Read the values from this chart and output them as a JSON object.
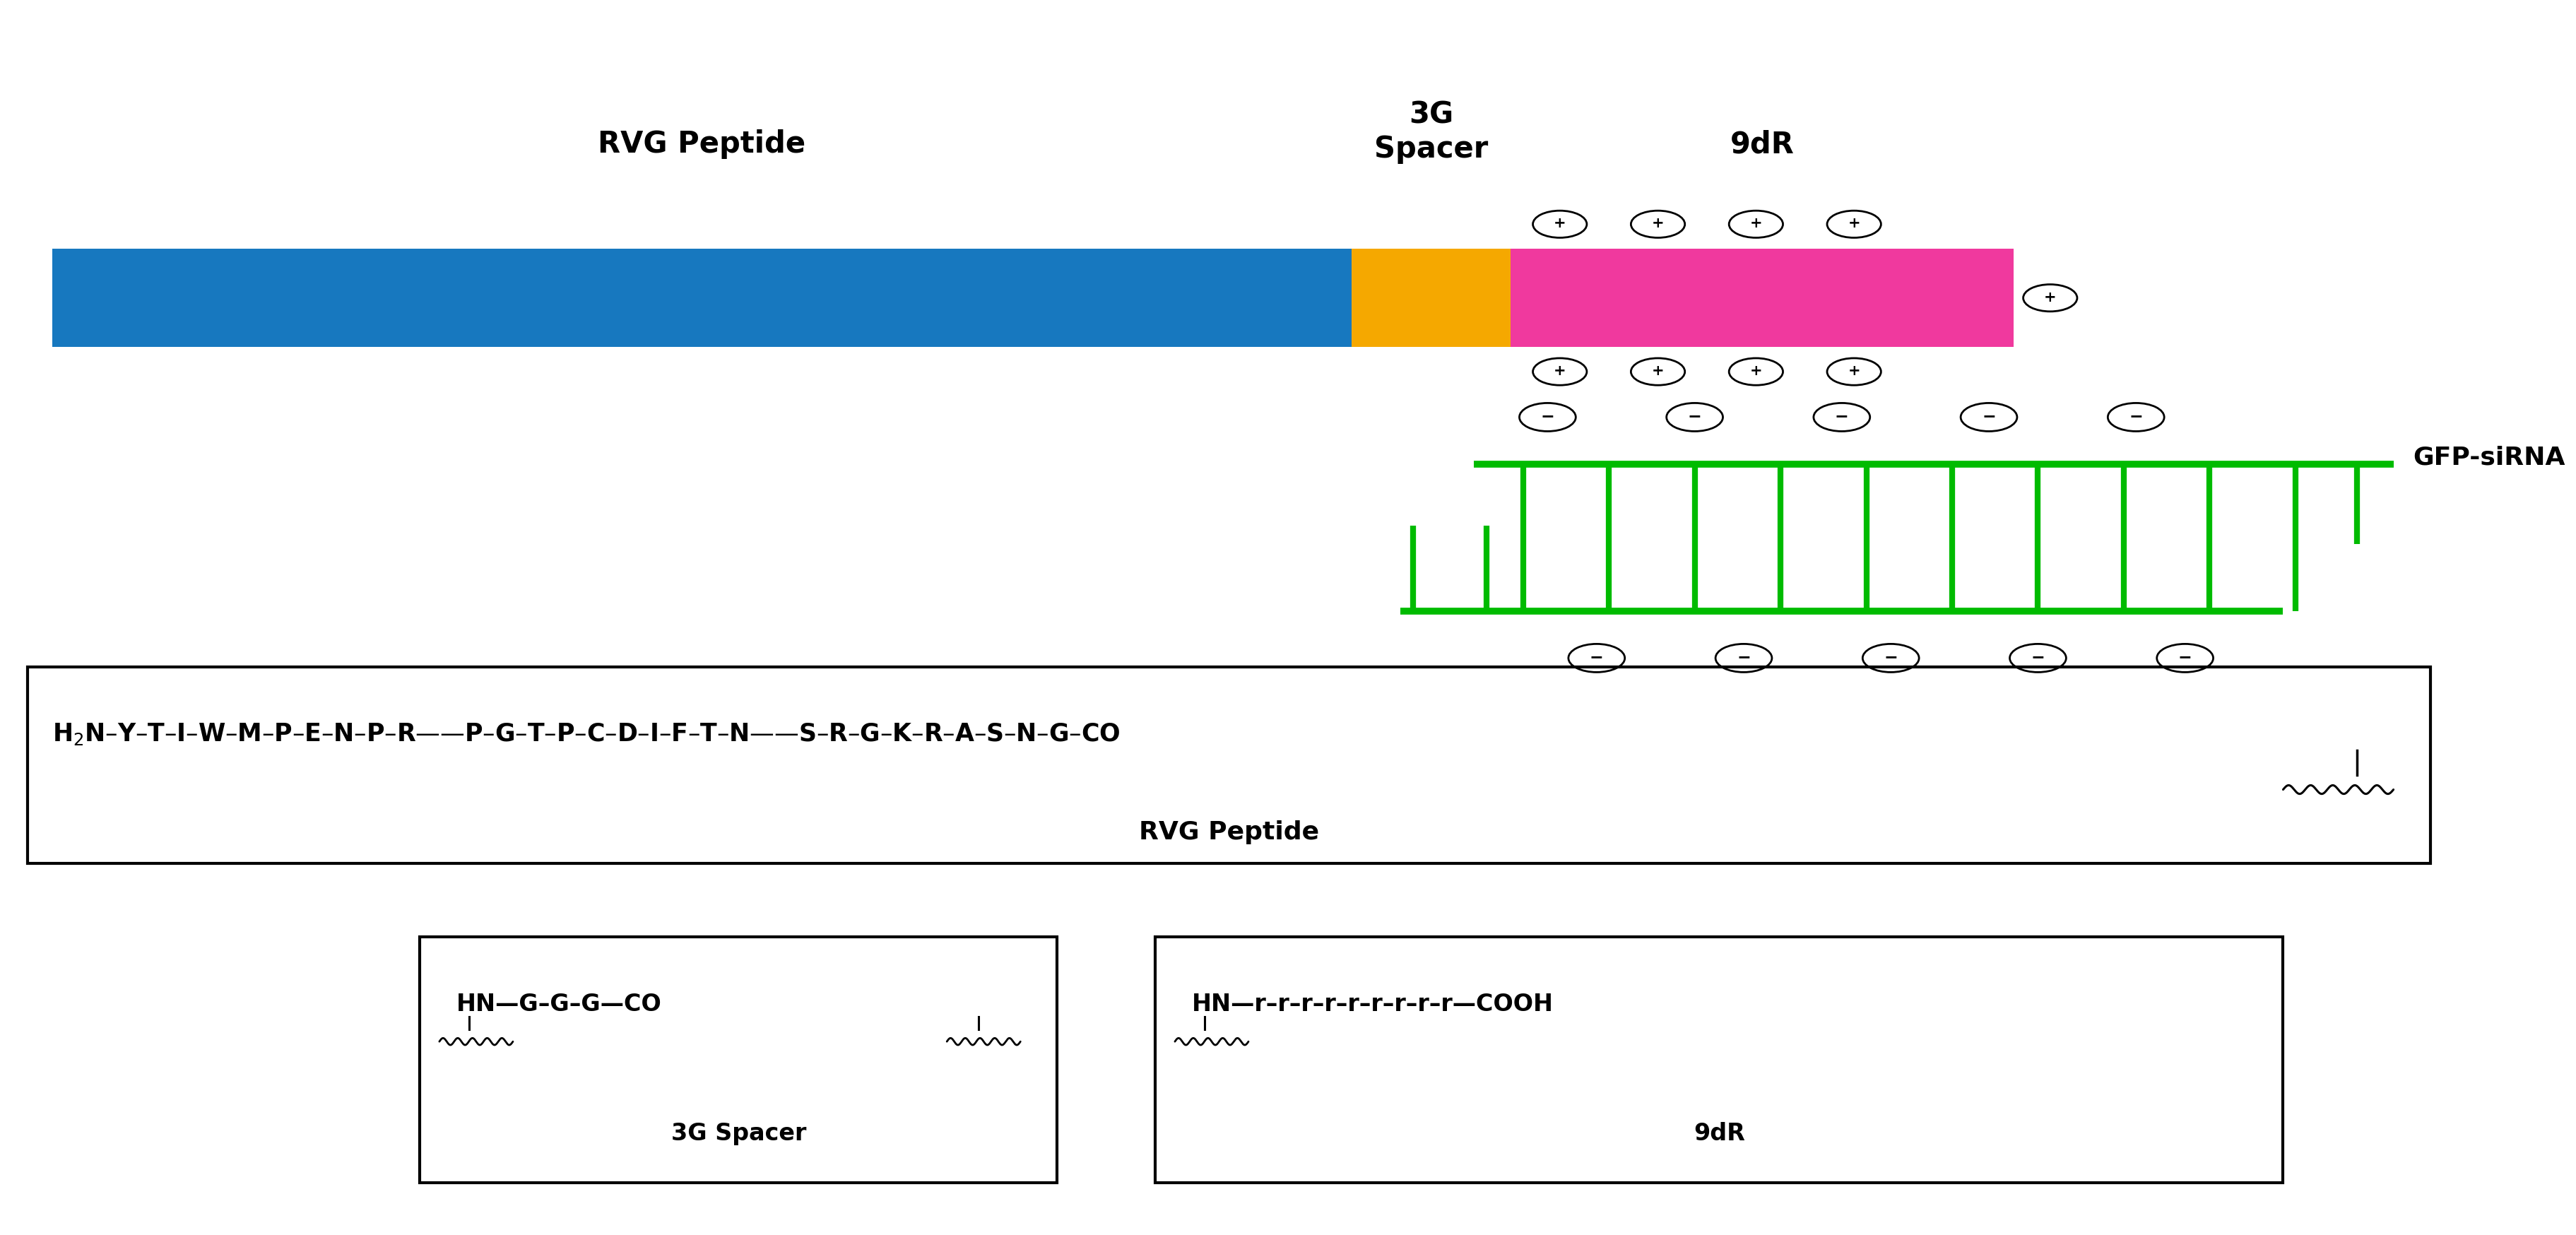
{
  "fig_width": 36.46,
  "fig_height": 17.48,
  "bg_color": "#ffffff",
  "blue_color": "#1778bf",
  "yellow_color": "#f5a800",
  "pink_color": "#f0399e",
  "green_color": "#00bb00",
  "title_rvg": "RVG Peptide",
  "title_3g": "3G\nSpacer",
  "title_9dr": "9dR",
  "label_gfp": "GFP-siRNA",
  "label_3g_spacer": "3G Spacer",
  "label_9dr": "9dR"
}
